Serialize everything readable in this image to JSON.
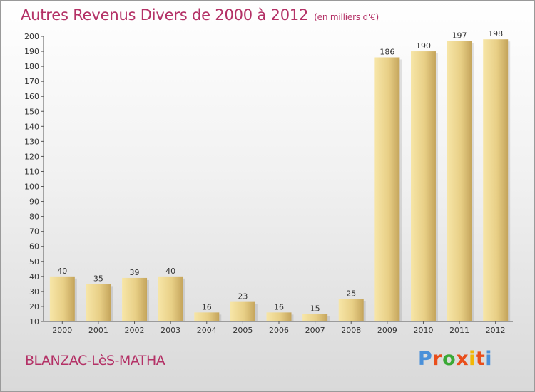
{
  "title": "Autres Revenus Divers de 2000 à 2012",
  "title_unit": "(en milliers d'€)",
  "commune": "BLANZAC-LèS-MATHA",
  "logo": {
    "text": "Proxiti",
    "letter_colors": [
      "#4a90d9",
      "#e94e1b",
      "#3aa935",
      "#e94e1b",
      "#f2b705",
      "#e94e1b",
      "#4a90d9"
    ]
  },
  "colors": {
    "title": "#b43166",
    "bar_light": "#f6e3a3",
    "bar_dark": "#c8a95e",
    "axis": "#555555"
  },
  "chart_data": {
    "type": "bar",
    "title": "Autres Revenus Divers de 2000 à 2012",
    "categories": [
      "2000",
      "2001",
      "2002",
      "2003",
      "2004",
      "2005",
      "2006",
      "2007",
      "2008",
      "2009",
      "2010",
      "2011",
      "2012"
    ],
    "values": [
      40,
      35,
      39,
      40,
      16,
      23,
      16,
      15,
      25,
      186,
      190,
      197,
      198
    ],
    "ylim": [
      10,
      200
    ],
    "yticks": [
      10,
      20,
      30,
      40,
      50,
      60,
      70,
      80,
      90,
      100,
      110,
      120,
      130,
      140,
      150,
      160,
      170,
      180,
      190,
      200
    ],
    "grid": false,
    "data_labels": true
  }
}
